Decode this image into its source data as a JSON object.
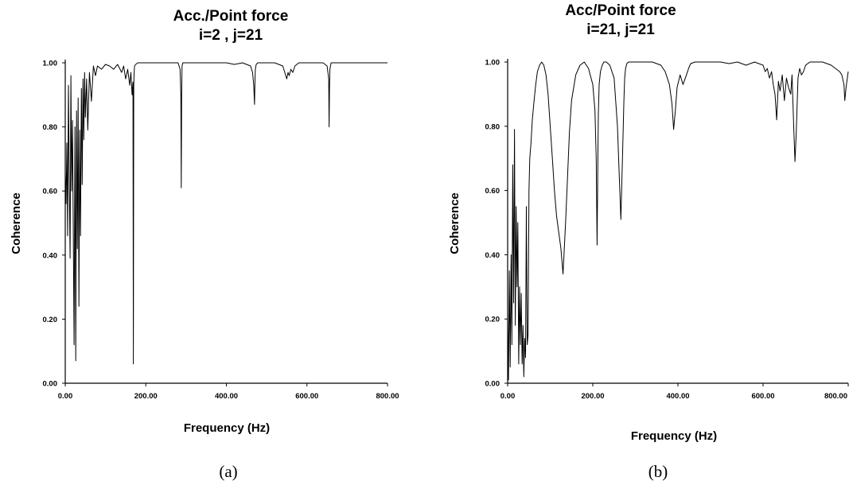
{
  "figures": [
    {
      "title_line1": "Acc./Point force",
      "title_line2": "i=2 , j=21",
      "caption": "(a)"
    },
    {
      "title_line1": "Acc/Point force",
      "title_line2": "i=21, j=21",
      "caption": "(b)"
    }
  ],
  "chart_data": [
    {
      "type": "line",
      "title": "Acc./Point force  i=2 , j=21",
      "xlabel": "Frequency (Hz)",
      "ylabel": "Coherence",
      "xlim": [
        0,
        800
      ],
      "ylim": [
        0,
        1
      ],
      "xticks": [
        0,
        200,
        400,
        600,
        800
      ],
      "xtick_labels": [
        "0.00",
        "200.00",
        "400.00",
        "600.00",
        "800.00"
      ],
      "yticks": [
        0,
        0.2,
        0.4,
        0.6,
        0.8,
        1.0
      ],
      "ytick_labels": [
        "0.00",
        "0.20",
        "0.40",
        "0.60",
        "0.80",
        "1.00"
      ],
      "grid": false,
      "series": [
        {
          "x": [
            0,
            2,
            4,
            6,
            8,
            10,
            12,
            14,
            16,
            18,
            20,
            22,
            24,
            26,
            28,
            30,
            32,
            34,
            36,
            38,
            40,
            42,
            44,
            46,
            48,
            50,
            53,
            56,
            60,
            65,
            70,
            75,
            80,
            90,
            100,
            110,
            120,
            130,
            140,
            145,
            150,
            155,
            160,
            163,
            166,
            168,
            169,
            170,
            171,
            172,
            175,
            180,
            190,
            200,
            250,
            280,
            285,
            287,
            288,
            289,
            290,
            292,
            295,
            300,
            350,
            400,
            420,
            440,
            460,
            465,
            468,
            470,
            471,
            472,
            474,
            478,
            490,
            520,
            540,
            545,
            550,
            553,
            556,
            560,
            565,
            570,
            580,
            600,
            620,
            640,
            650,
            654,
            655,
            656,
            657,
            660,
            665,
            680,
            700,
            750,
            800
          ],
          "y": [
            0.66,
            0.56,
            0.75,
            0.46,
            0.93,
            0.62,
            0.39,
            0.96,
            0.6,
            0.82,
            0.47,
            0.12,
            0.8,
            0.07,
            0.85,
            0.42,
            0.89,
            0.24,
            0.79,
            0.46,
            0.92,
            0.62,
            0.95,
            0.76,
            0.97,
            0.83,
            0.95,
            0.79,
            0.97,
            0.88,
            0.99,
            0.96,
            0.99,
            0.98,
            0.995,
            0.99,
            0.98,
            0.995,
            0.97,
            0.99,
            0.95,
            0.98,
            0.93,
            0.97,
            0.9,
            0.94,
            0.06,
            0.93,
            0.97,
            0.99,
            0.995,
            1.0,
            1.0,
            1.0,
            1.0,
            1.0,
            0.98,
            0.9,
            0.61,
            0.9,
            0.99,
            1.0,
            1.0,
            1.0,
            1.0,
            1.0,
            0.995,
            1.0,
            0.99,
            0.97,
            0.93,
            0.87,
            0.94,
            0.98,
            0.995,
            1.0,
            1.0,
            1.0,
            0.99,
            0.97,
            0.95,
            0.97,
            0.96,
            0.98,
            0.97,
            0.99,
            1.0,
            1.0,
            1.0,
            1.0,
            0.99,
            0.95,
            0.8,
            0.92,
            0.98,
            1.0,
            1.0,
            1.0,
            1.0,
            1.0,
            1.0
          ]
        }
      ]
    },
    {
      "type": "line",
      "title": "Acc/Point force  i=21, j=21",
      "xlabel": "Frequency (Hz)",
      "ylabel": "Coherence",
      "xlim": [
        0,
        800
      ],
      "ylim": [
        0,
        1
      ],
      "xticks": [
        0,
        200,
        400,
        600,
        800
      ],
      "xtick_labels": [
        "0.00",
        "200.00",
        "400.00",
        "600.00",
        "800.00"
      ],
      "yticks": [
        0,
        0.2,
        0.4,
        0.6,
        0.8,
        1.0
      ],
      "ytick_labels": [
        "0.00",
        "0.20",
        "0.40",
        "0.60",
        "0.80",
        "1.00"
      ],
      "grid": false,
      "series": [
        {
          "x": [
            0,
            2,
            4,
            6,
            8,
            10,
            12,
            14,
            16,
            18,
            20,
            22,
            24,
            26,
            28,
            30,
            32,
            34,
            36,
            38,
            40,
            42,
            44,
            46,
            48,
            50,
            52,
            55,
            58,
            62,
            66,
            70,
            75,
            80,
            85,
            90,
            95,
            100,
            105,
            110,
            115,
            120,
            125,
            130,
            133,
            136,
            140,
            145,
            150,
            160,
            170,
            180,
            190,
            200,
            205,
            208,
            210,
            212,
            213,
            215,
            218,
            222,
            226,
            232,
            240,
            250,
            258,
            262,
            266,
            270,
            273,
            275,
            277,
            280,
            284,
            290,
            300,
            320,
            340,
            360,
            370,
            380,
            386,
            390,
            394,
            398,
            405,
            412,
            420,
            425,
            430,
            440,
            460,
            480,
            500,
            520,
            540,
            560,
            580,
            600,
            605,
            610,
            615,
            620,
            624,
            628,
            632,
            636,
            640,
            645,
            650,
            655,
            660,
            665,
            668,
            672,
            675,
            678,
            682,
            686,
            690,
            695,
            700,
            710,
            720,
            740,
            760,
            770,
            780,
            785,
            790,
            792,
            795,
            798,
            800
          ],
          "y": [
            0.2,
            0.01,
            0.35,
            0.05,
            0.4,
            0.12,
            0.68,
            0.25,
            0.79,
            0.18,
            0.55,
            0.3,
            0.5,
            0.06,
            0.3,
            0.12,
            0.28,
            0.06,
            0.18,
            0.02,
            0.14,
            0.08,
            0.55,
            0.12,
            0.15,
            0.6,
            0.7,
            0.75,
            0.82,
            0.88,
            0.93,
            0.97,
            0.99,
            1.0,
            0.99,
            0.96,
            0.9,
            0.8,
            0.7,
            0.6,
            0.52,
            0.47,
            0.42,
            0.34,
            0.42,
            0.5,
            0.62,
            0.78,
            0.88,
            0.96,
            0.99,
            1.0,
            0.98,
            0.93,
            0.85,
            0.7,
            0.43,
            0.7,
            0.84,
            0.93,
            0.97,
            0.99,
            1.0,
            1.0,
            0.99,
            0.95,
            0.8,
            0.65,
            0.51,
            0.72,
            0.88,
            0.95,
            0.98,
            0.995,
            1.0,
            1.0,
            1.0,
            1.0,
            1.0,
            0.99,
            0.97,
            0.93,
            0.87,
            0.79,
            0.85,
            0.92,
            0.96,
            0.93,
            0.96,
            0.98,
            0.995,
            1.0,
            1.0,
            1.0,
            1.0,
            0.995,
            1.0,
            0.99,
            1.0,
            0.99,
            0.97,
            0.98,
            0.95,
            0.97,
            0.93,
            0.9,
            0.82,
            0.94,
            0.91,
            0.96,
            0.88,
            0.95,
            0.92,
            0.9,
            0.96,
            0.8,
            0.69,
            0.78,
            0.95,
            0.98,
            0.96,
            0.97,
            0.99,
            1.0,
            1.0,
            1.0,
            0.99,
            0.98,
            0.97,
            0.96,
            0.93,
            0.88,
            0.92,
            0.95,
            0.97
          ]
        }
      ]
    }
  ]
}
